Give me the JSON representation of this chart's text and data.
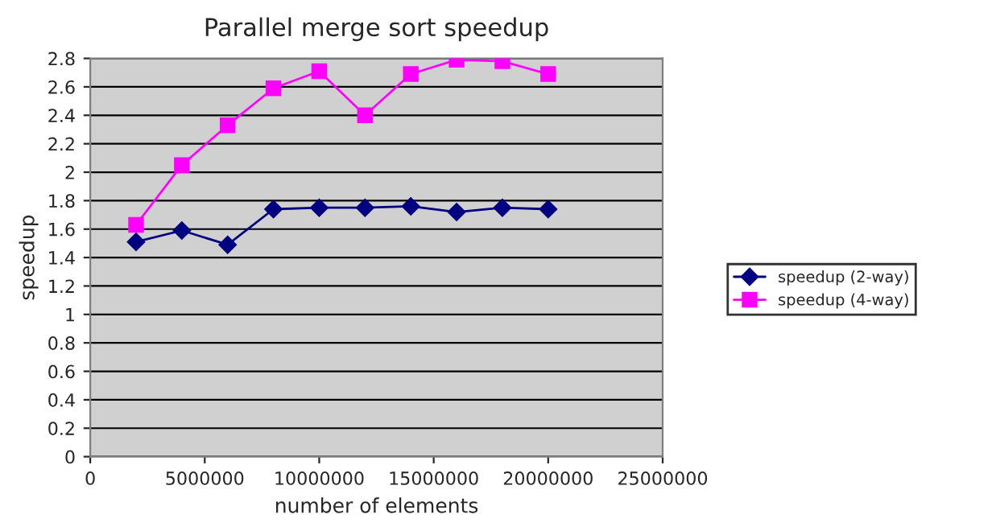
{
  "chart_data": {
    "type": "line",
    "title": "Parallel merge sort speedup",
    "xlabel": "number of elements",
    "ylabel": "speedup",
    "x": [
      2000000,
      4000000,
      6000000,
      8000000,
      10000000,
      12000000,
      14000000,
      16000000,
      18000000,
      20000000
    ],
    "series": [
      {
        "name": "speedup (2-way)",
        "color": "#000080",
        "marker": "diamond",
        "values": [
          1.51,
          1.59,
          1.49,
          1.74,
          1.75,
          1.75,
          1.76,
          1.72,
          1.75,
          1.74
        ]
      },
      {
        "name": "speedup (4-way)",
        "color": "#ff00ff",
        "marker": "square",
        "values": [
          1.63,
          2.05,
          2.33,
          2.59,
          2.71,
          2.4,
          2.69,
          2.79,
          2.78,
          2.69
        ]
      }
    ],
    "xlim": [
      0,
      25000000
    ],
    "xticks": [
      0,
      5000000,
      10000000,
      15000000,
      20000000,
      25000000
    ],
    "ylim": [
      0,
      2.8
    ],
    "yticks": [
      0,
      0.2,
      0.4,
      0.6,
      0.8,
      1,
      1.2,
      1.4,
      1.6,
      1.8,
      2,
      2.2,
      2.4,
      2.6,
      2.8
    ],
    "grid": "y",
    "legend": "right",
    "line_style": "solid"
  }
}
